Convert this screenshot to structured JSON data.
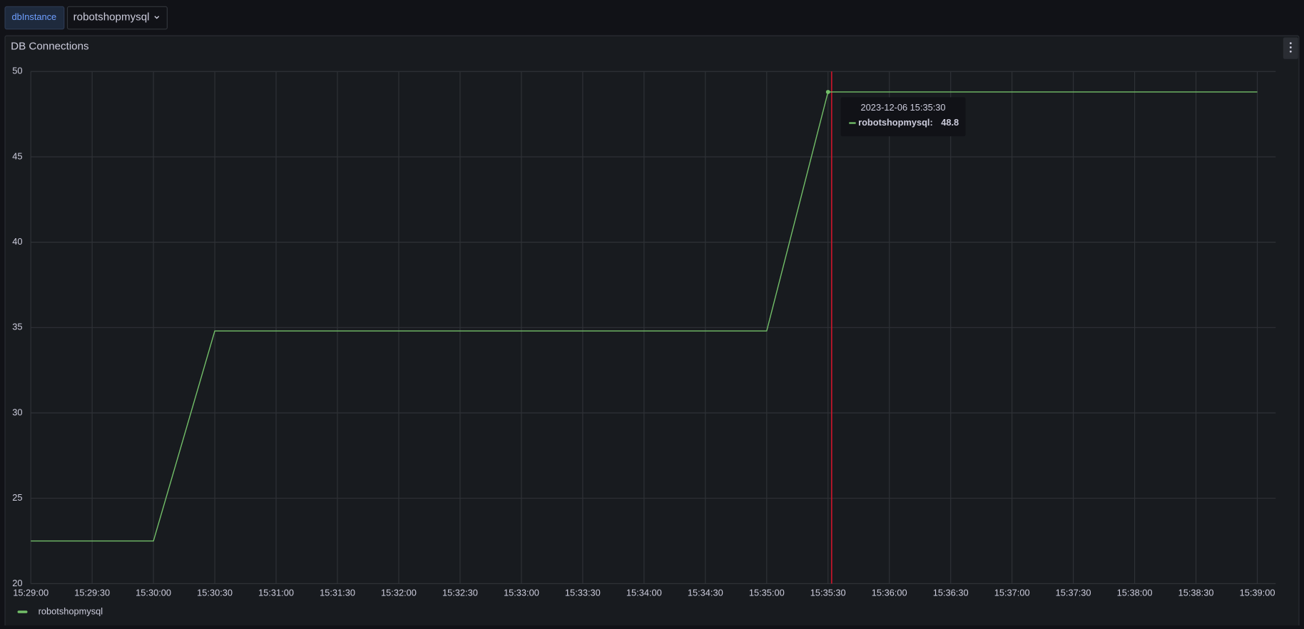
{
  "toolbar": {
    "variable_label": "dbInstance",
    "variable_value": "robotshopmysql"
  },
  "chart_data": {
    "type": "line",
    "title": "DB Connections",
    "x": [
      "15:29:00",
      "15:29:30",
      "15:30:00",
      "15:30:30",
      "15:31:00",
      "15:31:30",
      "15:32:00",
      "15:32:30",
      "15:33:00",
      "15:33:30",
      "15:34:00",
      "15:34:30",
      "15:35:00",
      "15:35:30",
      "15:36:00",
      "15:36:30",
      "15:37:00",
      "15:37:30",
      "15:38:00",
      "15:38:30",
      "15:39:00"
    ],
    "series": [
      {
        "name": "robotshopmysql",
        "color": "#73bf69",
        "values": [
          22.5,
          22.5,
          22.5,
          34.8,
          34.8,
          34.8,
          34.8,
          34.8,
          34.8,
          34.8,
          34.8,
          34.8,
          34.8,
          48.8,
          48.8,
          48.8,
          48.8,
          48.8,
          48.8,
          48.8,
          48.8
        ]
      }
    ],
    "xlim": [
      "15:29:00",
      "15:39:09"
    ],
    "xticks": [
      "15:29:00",
      "15:29:30",
      "15:30:00",
      "15:30:30",
      "15:31:00",
      "15:31:30",
      "15:32:00",
      "15:32:30",
      "15:33:00",
      "15:33:30",
      "15:34:00",
      "15:34:30",
      "15:35:00",
      "15:35:30",
      "15:36:00",
      "15:36:30",
      "15:37:00",
      "15:37:30",
      "15:38:00",
      "15:38:30",
      "15:39:00"
    ],
    "ylim": [
      20,
      50
    ],
    "yticks": [
      20,
      25,
      30,
      35,
      40,
      45,
      50
    ],
    "grid": true,
    "legend": "bottom-left",
    "tooltip": {
      "time": "2023-12-06 15:35:30",
      "label": "robotshopmysql:"
    }
  }
}
